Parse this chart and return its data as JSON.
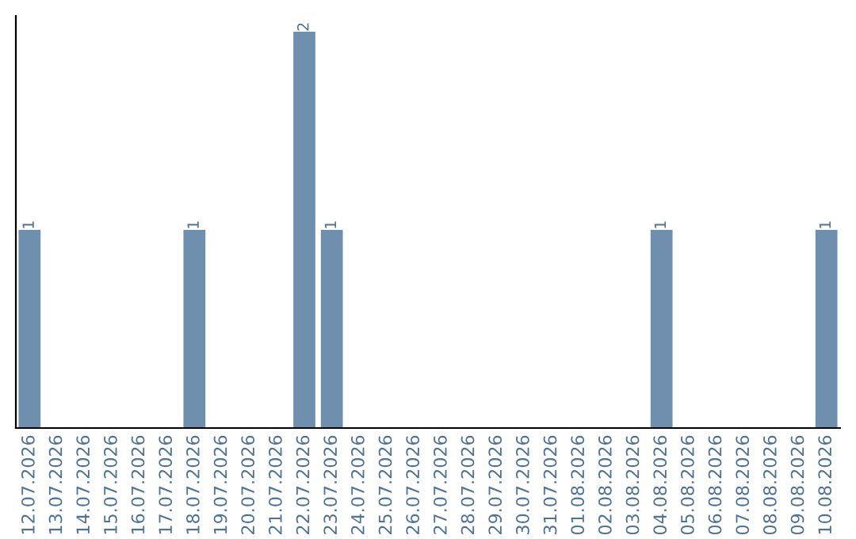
{
  "chart_data": {
    "type": "bar",
    "categories": [
      "12.07.2026",
      "13.07.2026",
      "14.07.2026",
      "15.07.2026",
      "16.07.2026",
      "17.07.2026",
      "18.07.2026",
      "19.07.2026",
      "20.07.2026",
      "21.07.2026",
      "22.07.2026",
      "23.07.2026",
      "24.07.2026",
      "25.07.2026",
      "26.07.2026",
      "27.07.2026",
      "28.07.2026",
      "29.07.2026",
      "30.07.2026",
      "31.07.2026",
      "01.08.2026",
      "02.08.2026",
      "03.08.2026",
      "04.08.2026",
      "05.08.2026",
      "06.08.2026",
      "07.08.2026",
      "08.08.2026",
      "09.08.2026",
      "10.08.2026"
    ],
    "values": [
      1,
      0,
      0,
      0,
      0,
      0,
      1,
      0,
      0,
      0,
      2,
      1,
      0,
      0,
      0,
      0,
      0,
      0,
      0,
      0,
      0,
      0,
      0,
      1,
      0,
      0,
      0,
      0,
      0,
      1
    ],
    "value_labels": [
      "1",
      null,
      null,
      null,
      null,
      null,
      "1",
      null,
      null,
      null,
      "2",
      "1",
      null,
      null,
      null,
      null,
      null,
      null,
      null,
      null,
      null,
      null,
      null,
      "1",
      null,
      null,
      null,
      null,
      null,
      "1"
    ],
    "color": "#6f8fae",
    "tick_labels": "x",
    "grid": false
  }
}
